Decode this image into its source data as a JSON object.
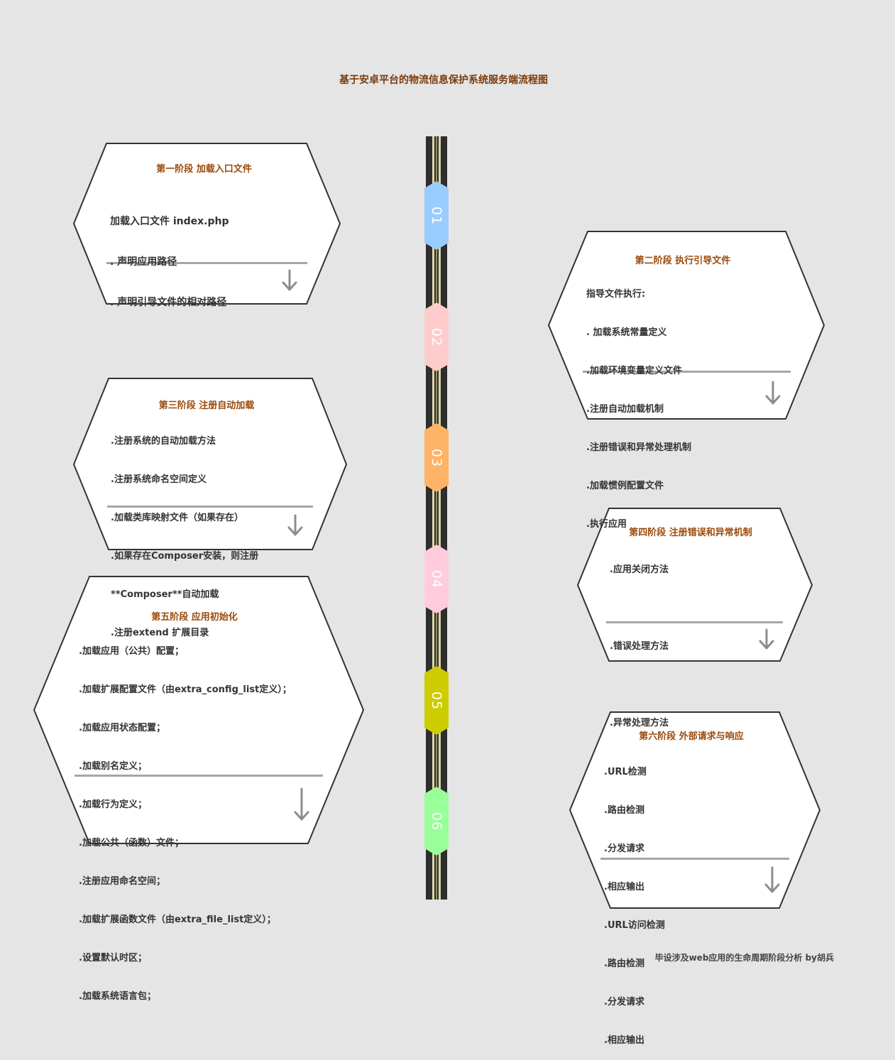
{
  "title": "基于安卓平台的物流信息保护系统服务端流程图",
  "footer": "毕设涉及web应用的生命周期阶段分析 by胡兵",
  "colors": {
    "background": "#e5e5e5",
    "title": "#7a3b0b",
    "stage_title": "#9b4a0a",
    "road": "#2e2e2e",
    "road_line": "#f0e6a8"
  },
  "markers": [
    {
      "label": "01",
      "color": "#99ccff"
    },
    {
      "label": "02",
      "color": "#ffcccc"
    },
    {
      "label": "03",
      "color": "#ffb366"
    },
    {
      "label": "04",
      "color": "#ffccdd"
    },
    {
      "label": "05",
      "color": "#cccc00"
    },
    {
      "label": "06",
      "color": "#99ff99"
    }
  ],
  "stages": [
    {
      "title": "第一阶段  加载入口文件",
      "lines": [
        "加载入口文件 index.php",
        ". 声明应用路径",
        ". 声明引导文件的相对路径"
      ]
    },
    {
      "title": "第二阶段  执行引导文件",
      "lines": [
        "指导文件执行:",
        ". 加载系统常量定义",
        ".加载环境变量定义文件",
        ".注册自动加载机制",
        ".注册错误和异常处理机制",
        ".加载惯例配置文件",
        ".执行应用"
      ]
    },
    {
      "title": "第三阶段 注册自动加载",
      "lines": [
        ".注册系统的自动加载方法",
        ".注册系统命名空间定义",
        ".加载类库映射文件（如果存在）",
        ".如果存在Composer安装，则注册",
        "**Composer**自动加载",
        ".注册extend 扩展目录"
      ]
    },
    {
      "title": "第四阶段 注册错误和异常机制",
      "lines": [
        ".应用关闭方法",
        "",
        ".错误处理方法",
        "",
        ".异常处理方法"
      ]
    },
    {
      "title": "第五阶段 应用初始化",
      "lines": [
        ".加载应用（公共）配置；",
        ".加载扩展配置文件（由extra_config_list定义）；",
        ".加载应用状态配置；",
        ".加载别名定义；",
        ".加载行为定义；",
        ".加载公共（函数）文件；",
        ".注册应用命名空间；",
        ".加载扩展函数文件（由extra_file_list定义）；",
        ".设置默认时区；",
        ".加载系统语言包；"
      ]
    },
    {
      "title": "第六阶段 外部请求与响应",
      "lines": [
        ".URL检测",
        ".路由检测",
        ".分发请求",
        ".相应输出",
        ".URL访问检测",
        ".路由检测",
        ".分发请求",
        ".相应输出"
      ]
    }
  ]
}
